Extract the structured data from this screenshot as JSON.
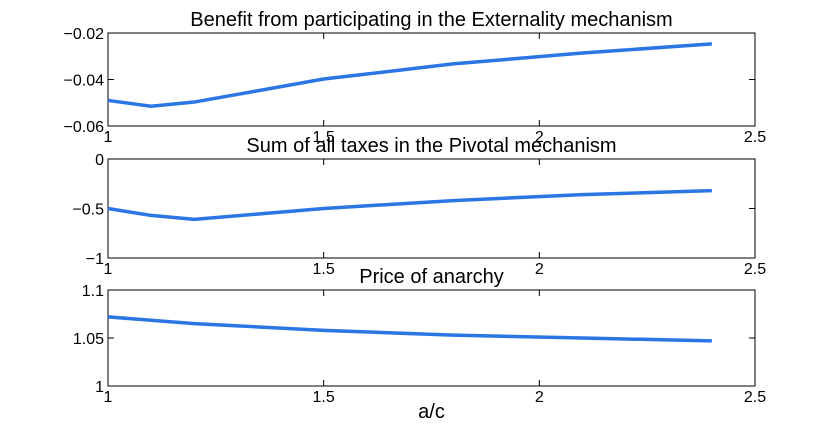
{
  "chart_data": [
    {
      "type": "line",
      "title": "Benefit from participating in the Externality mechanism",
      "x": [
        1,
        1.1,
        1.2,
        1.5,
        1.8,
        2.1,
        2.4
      ],
      "series": [
        {
          "color": "#2b76e5",
          "values": [
            -0.049,
            -0.0515,
            -0.0497,
            -0.0398,
            -0.0333,
            -0.0286,
            -0.0247
          ]
        }
      ],
      "xlim": [
        1,
        2.5
      ],
      "xticks": [
        1,
        1.5,
        2,
        2.5
      ],
      "ylim": [
        -0.06,
        -0.02
      ],
      "yticks": [
        {
          "value": -0.06,
          "label": "−0.06"
        },
        {
          "value": -0.04,
          "label": "−0.04"
        },
        {
          "value": -0.02,
          "label": "−0.02"
        }
      ]
    },
    {
      "type": "line",
      "title": "Sum of all taxes in the Pivotal mechanism",
      "x": [
        1,
        1.1,
        1.2,
        1.5,
        1.8,
        2.1,
        2.4
      ],
      "series": [
        {
          "color": "#2b76e5",
          "values": [
            -0.5,
            -0.57,
            -0.61,
            -0.5,
            -0.42,
            -0.36,
            -0.32
          ]
        }
      ],
      "xlim": [
        1,
        2.5
      ],
      "xticks": [
        1,
        1.5,
        2,
        2.5
      ],
      "ylim": [
        -1,
        0
      ],
      "yticks": [
        {
          "value": -1,
          "label": "−1"
        },
        {
          "value": -0.5,
          "label": "−0.5"
        },
        0
      ]
    },
    {
      "type": "line",
      "title": "Price of anarchy",
      "xlabel": "a/c",
      "x": [
        1,
        1.2,
        1.5,
        1.8,
        2.1,
        2.4
      ],
      "series": [
        {
          "color": "#2b76e5",
          "values": [
            1.072,
            1.065,
            1.058,
            1.053,
            1.05,
            1.047
          ]
        }
      ],
      "xlim": [
        1,
        2.5
      ],
      "xticks": [
        1,
        1.5,
        2,
        2.5
      ],
      "ylim": [
        1,
        1.1
      ],
      "yticks": [
        1,
        1.05,
        1.1
      ]
    }
  ]
}
